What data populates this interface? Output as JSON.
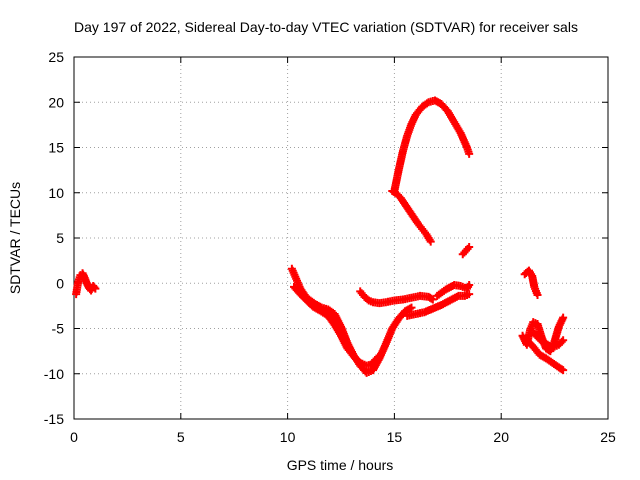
{
  "chart_data": {
    "type": "scatter",
    "title": "Day 197 of 2022, Sidereal Day-to-day VTEC variation (SDTVAR) for receiver sals",
    "xlabel": "GPS time / hours",
    "ylabel": "SDTVAR / TECUs",
    "xlim": [
      0,
      25
    ],
    "ylim": [
      -15,
      25
    ],
    "xticks": [
      0,
      5,
      10,
      15,
      20,
      25
    ],
    "yticks": [
      -15,
      -10,
      -5,
      0,
      5,
      10,
      15,
      20,
      25
    ],
    "grid": true,
    "marker": "+",
    "color": "#ff0000",
    "series": [
      {
        "points": [
          [
            0.1,
            -1.2
          ],
          [
            0.2,
            0.2
          ],
          [
            0.3,
            0.9
          ],
          [
            0.4,
            1.1
          ],
          [
            0.5,
            0.6
          ],
          [
            0.6,
            0.0
          ],
          [
            0.7,
            -0.5
          ],
          [
            0.8,
            -0.8
          ],
          [
            0.9,
            -0.3
          ],
          [
            1.0,
            -0.6
          ]
        ]
      },
      {
        "points": [
          [
            10.2,
            1.6
          ],
          [
            10.4,
            0.5
          ],
          [
            10.6,
            -0.6
          ],
          [
            10.8,
            -1.3
          ],
          [
            11.0,
            -1.8
          ],
          [
            11.3,
            -2.3
          ],
          [
            11.6,
            -2.7
          ],
          [
            11.9,
            -2.9
          ],
          [
            12.2,
            -3.4
          ],
          [
            12.5,
            -4.8
          ],
          [
            12.8,
            -6.6
          ],
          [
            13.1,
            -8.0
          ],
          [
            13.4,
            -9.1
          ],
          [
            13.7,
            -9.9
          ],
          [
            14.0,
            -9.6
          ],
          [
            14.3,
            -8.3
          ],
          [
            14.6,
            -6.7
          ],
          [
            14.9,
            -5.0
          ],
          [
            15.2,
            -3.9
          ],
          [
            15.5,
            -3.1
          ],
          [
            15.8,
            -2.7
          ]
        ]
      },
      {
        "points": [
          [
            10.3,
            -0.4
          ],
          [
            10.6,
            -1.2
          ],
          [
            10.9,
            -1.9
          ],
          [
            11.2,
            -2.6
          ],
          [
            11.5,
            -3.0
          ],
          [
            11.9,
            -3.6
          ],
          [
            12.2,
            -4.6
          ],
          [
            12.5,
            -5.8
          ],
          [
            12.8,
            -7.2
          ],
          [
            13.1,
            -8.1
          ],
          [
            13.4,
            -8.8
          ],
          [
            13.7,
            -9.1
          ],
          [
            13.9,
            -9.0
          ],
          [
            14.1,
            -8.5
          ],
          [
            14.3,
            -8.0
          ]
        ]
      },
      {
        "points": [
          [
            13.4,
            -0.9
          ],
          [
            13.6,
            -1.5
          ],
          [
            13.8,
            -1.9
          ],
          [
            14.0,
            -2.1
          ],
          [
            14.3,
            -2.2
          ],
          [
            14.6,
            -2.1
          ],
          [
            15.0,
            -1.9
          ],
          [
            15.4,
            -1.8
          ],
          [
            15.8,
            -1.6
          ],
          [
            16.2,
            -1.4
          ],
          [
            16.6,
            -1.5
          ],
          [
            16.8,
            -1.8
          ]
        ]
      },
      {
        "points": [
          [
            15.6,
            -3.6
          ],
          [
            16.0,
            -3.4
          ],
          [
            16.4,
            -3.2
          ],
          [
            16.8,
            -2.8
          ],
          [
            17.2,
            -2.4
          ],
          [
            17.6,
            -1.9
          ],
          [
            18.0,
            -1.4
          ],
          [
            18.3,
            -1.4
          ],
          [
            18.5,
            -1.2
          ]
        ]
      },
      {
        "points": [
          [
            17.0,
            -1.4
          ],
          [
            17.4,
            -0.7
          ],
          [
            17.8,
            -0.2
          ],
          [
            18.1,
            -0.3
          ],
          [
            18.4,
            -0.6
          ],
          [
            18.5,
            -0.2
          ]
        ]
      },
      {
        "points": [
          [
            14.9,
            10.2
          ],
          [
            15.1,
            9.9
          ],
          [
            15.3,
            9.4
          ],
          [
            15.5,
            8.7
          ],
          [
            15.7,
            8.0
          ],
          [
            15.9,
            7.3
          ],
          [
            16.1,
            6.6
          ],
          [
            16.3,
            6.0
          ],
          [
            16.5,
            5.4
          ],
          [
            16.7,
            4.6
          ]
        ]
      },
      {
        "points": [
          [
            15.0,
            10.2
          ],
          [
            15.2,
            12.5
          ],
          [
            15.4,
            14.6
          ],
          [
            15.6,
            16.3
          ],
          [
            15.8,
            17.6
          ],
          [
            16.0,
            18.6
          ],
          [
            16.3,
            19.5
          ],
          [
            16.6,
            20.0
          ],
          [
            16.9,
            20.2
          ],
          [
            17.2,
            19.8
          ],
          [
            17.5,
            19.0
          ],
          [
            17.8,
            17.8
          ],
          [
            18.1,
            16.6
          ],
          [
            18.4,
            15.0
          ],
          [
            18.5,
            14.3
          ]
        ]
      },
      {
        "points": [
          [
            18.2,
            3.2
          ],
          [
            18.35,
            3.6
          ],
          [
            18.5,
            4.0
          ]
        ]
      },
      {
        "points": [
          [
            21.1,
            1.0
          ],
          [
            21.3,
            1.4
          ],
          [
            21.45,
            0.8
          ],
          [
            21.55,
            -0.4
          ],
          [
            21.7,
            -1.3
          ]
        ]
      },
      {
        "points": [
          [
            21.0,
            -5.8
          ],
          [
            21.2,
            -6.8
          ],
          [
            21.35,
            -5.2
          ],
          [
            21.5,
            -4.3
          ],
          [
            21.7,
            -4.5
          ],
          [
            21.9,
            -6.0
          ],
          [
            22.1,
            -7.2
          ],
          [
            22.3,
            -7.5
          ],
          [
            22.5,
            -6.4
          ],
          [
            22.7,
            -4.8
          ],
          [
            22.9,
            -3.8
          ]
        ]
      },
      {
        "points": [
          [
            21.2,
            -6.3
          ],
          [
            21.5,
            -7.0
          ],
          [
            21.8,
            -7.9
          ],
          [
            22.1,
            -8.3
          ],
          [
            22.4,
            -8.8
          ],
          [
            22.7,
            -9.3
          ],
          [
            22.9,
            -9.6
          ]
        ]
      },
      {
        "points": [
          [
            21.5,
            -5.4
          ],
          [
            21.8,
            -6.2
          ],
          [
            22.1,
            -6.7
          ],
          [
            22.4,
            -7.1
          ],
          [
            22.7,
            -6.8
          ],
          [
            22.9,
            -6.3
          ]
        ]
      }
    ]
  }
}
